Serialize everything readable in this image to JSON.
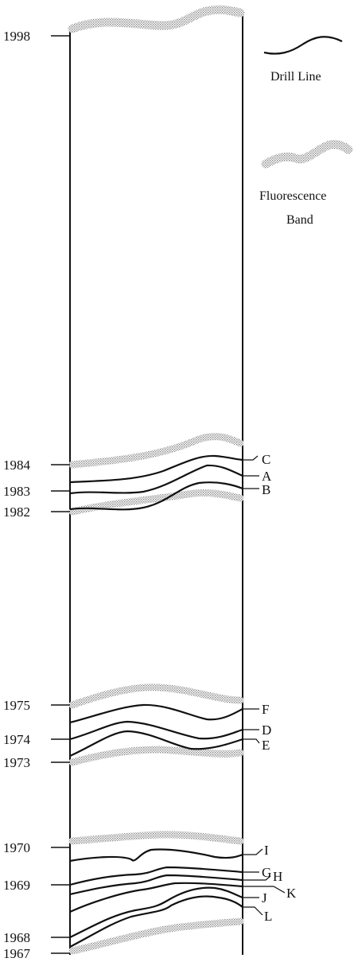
{
  "legend": {
    "drill_label": "Drill Line",
    "fluor_label_line1": "Fluorescence",
    "fluor_label_line2": "Band"
  },
  "years": [
    "1998",
    "1984",
    "1983",
    "1982",
    "1975",
    "1974",
    "1973",
    "1970",
    "1969",
    "1968",
    "1967"
  ],
  "letters": [
    "C",
    "A",
    "B",
    "F",
    "D",
    "E",
    "I",
    "G",
    "H",
    "K",
    "J",
    "L"
  ],
  "colors": {
    "ink": "#111111",
    "stipple": "#9a9a9a",
    "background": "#ffffff"
  }
}
